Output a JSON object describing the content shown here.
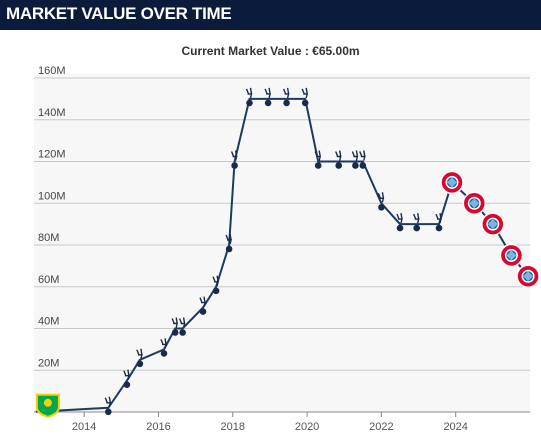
{
  "header": {
    "title": "MARKET VALUE OVER TIME"
  },
  "colors": {
    "header_bg": "#0b1b3c",
    "line": "#1f3a5f",
    "plot_bg": "#f7f7f7",
    "grid": "#c8c8c8",
    "marker_spurs": "#1a2a4a",
    "marker_bayern": "#dc052d"
  },
  "chart_data": {
    "type": "line",
    "title": "Current Market Value : €65.00m",
    "xlabel": "",
    "ylabel": "",
    "xlim": [
      2012.65,
      2026.0
    ],
    "ylim": [
      0,
      160
    ],
    "grid": true,
    "x_ticks": [
      2014,
      2016,
      2018,
      2020,
      2022,
      2024
    ],
    "y_ticks": [
      20,
      40,
      60,
      80,
      100,
      120,
      140,
      160
    ],
    "y_tick_labels": [
      "20M",
      "40M",
      "60M",
      "80M",
      "100M",
      "120M",
      "140M",
      "160M"
    ],
    "x_tick_labels": [
      "2014",
      "2016",
      "2018",
      "2020",
      "2022",
      "2024"
    ],
    "series": [
      {
        "values": [
          {
            "x": 2012.7,
            "y": 0.1,
            "club": "norwich-icon"
          },
          {
            "x": 2014.65,
            "y": 2,
            "club": "spurs-icon"
          },
          {
            "x": 2015.15,
            "y": 15,
            "club": "spurs-icon"
          },
          {
            "x": 2015.5,
            "y": 25,
            "club": "spurs-icon"
          },
          {
            "x": 2016.15,
            "y": 30,
            "club": "spurs-icon"
          },
          {
            "x": 2016.45,
            "y": 40,
            "club": "spurs-icon"
          },
          {
            "x": 2016.65,
            "y": 40,
            "club": "spurs-icon"
          },
          {
            "x": 2017.2,
            "y": 50,
            "club": "spurs-icon"
          },
          {
            "x": 2017.55,
            "y": 60,
            "club": "spurs-icon"
          },
          {
            "x": 2017.9,
            "y": 80,
            "club": "spurs-icon"
          },
          {
            "x": 2018.05,
            "y": 120,
            "club": "spurs-icon"
          },
          {
            "x": 2018.45,
            "y": 150,
            "club": "spurs-icon"
          },
          {
            "x": 2018.95,
            "y": 150,
            "club": "spurs-icon"
          },
          {
            "x": 2019.45,
            "y": 150,
            "club": "spurs-icon"
          },
          {
            "x": 2019.95,
            "y": 150,
            "club": "spurs-icon"
          },
          {
            "x": 2020.3,
            "y": 120,
            "club": "spurs-icon"
          },
          {
            "x": 2020.85,
            "y": 120,
            "club": "spurs-icon"
          },
          {
            "x": 2021.3,
            "y": 120,
            "club": "spurs-icon"
          },
          {
            "x": 2021.5,
            "y": 120,
            "club": "spurs-icon"
          },
          {
            "x": 2022.0,
            "y": 100,
            "club": "spurs-icon"
          },
          {
            "x": 2022.5,
            "y": 90,
            "club": "spurs-icon"
          },
          {
            "x": 2022.95,
            "y": 90,
            "club": "spurs-icon"
          },
          {
            "x": 2023.55,
            "y": 90,
            "club": "spurs-icon"
          },
          {
            "x": 2023.9,
            "y": 110,
            "club": "bayern-icon"
          },
          {
            "x": 2024.5,
            "y": 100,
            "club": "bayern-icon"
          },
          {
            "x": 2025.0,
            "y": 90,
            "club": "bayern-icon"
          },
          {
            "x": 2025.5,
            "y": 75,
            "club": "bayern-icon"
          },
          {
            "x": 2025.95,
            "y": 65,
            "club": "bayern-icon"
          }
        ]
      }
    ]
  }
}
